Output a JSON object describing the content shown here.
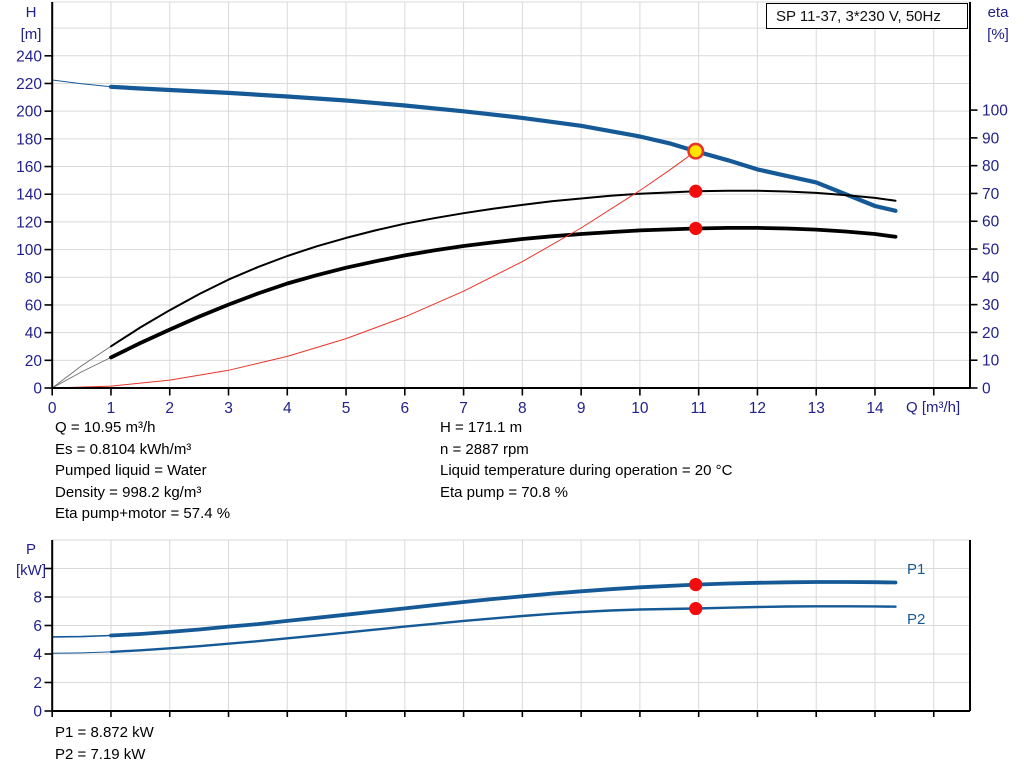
{
  "title_box": "SP 11-37, 3*230 V, 50Hz",
  "colors": {
    "curve_blue": "#155a96",
    "eta_black": "#000000",
    "thin_gray": "#6e6e6e",
    "system_red": "#e8352b",
    "marker_red": "#f20d0d",
    "marker_yellow": "#ffe400",
    "grid": "#d9d9d9",
    "axis": "#000000",
    "tick_text": "#21218c"
  },
  "main_chart": {
    "y_left_title": [
      "H",
      "[m]"
    ],
    "y_right_title": [
      "eta",
      "[%]"
    ],
    "x_title": "Q [m³/h]"
  },
  "power_chart": {
    "y_title": [
      "P",
      "[kW]"
    ],
    "series_labels": [
      "P1",
      "P2"
    ]
  },
  "info_left": [
    "Q = 10.95 m³/h",
    "Es = 0.8104 kWh/m³",
    "Pumped liquid = Water",
    "Density = 998.2 kg/m³",
    "Eta pump+motor = 57.4 %"
  ],
  "info_right": [
    "H = 171.1 m",
    "n = 2887 rpm",
    "Liquid temperature during operation = 20 °C",
    "Eta pump = 70.8 %"
  ],
  "power_info": [
    "P1 = 8.872 kW",
    "P2 = 7.19 kW"
  ],
  "chart_data": [
    {
      "type": "line",
      "title": "SP 11-37, 3*230 V, 50Hz",
      "xlabel": "Q [m³/h]",
      "x_ticks": [
        0,
        1,
        2,
        3,
        4,
        5,
        6,
        7,
        8,
        9,
        10,
        11,
        12,
        13,
        14
      ],
      "x_grid_max": 15,
      "x_max": 15.6,
      "y_left": {
        "label": "H [m]",
        "ticks": [
          0,
          20,
          40,
          60,
          80,
          100,
          120,
          140,
          160,
          180,
          200,
          220,
          240
        ],
        "grid_max": 260,
        "max": 277
      },
      "y_right": {
        "label": "eta [%]",
        "ticks": [
          0,
          10,
          20,
          30,
          40,
          50,
          60,
          70,
          80,
          90,
          100
        ]
      },
      "series": [
        {
          "name": "pump-head-curve",
          "axis": "left",
          "color": "#155a96",
          "width": 4.2,
          "thin_below": 1,
          "thin_width": 1,
          "thin_color": "#155a96",
          "points": [
            [
              0,
              222.5
            ],
            [
              0.5,
              219.8
            ],
            [
              1,
              217.6
            ],
            [
              1.5,
              216.4
            ],
            [
              2,
              215.3
            ],
            [
              3,
              213.2
            ],
            [
              4,
              210.6
            ],
            [
              5,
              207.7
            ],
            [
              6,
              204.1
            ],
            [
              7,
              199.9
            ],
            [
              8,
              195.1
            ],
            [
              9,
              189.4
            ],
            [
              10,
              181.7
            ],
            [
              10.5,
              176.8
            ],
            [
              10.95,
              171.1
            ],
            [
              11.5,
              164.5
            ],
            [
              12,
              157.9
            ],
            [
              12.5,
              153.2
            ],
            [
              13,
              148.5
            ],
            [
              13.5,
              140
            ],
            [
              14,
              131.5
            ],
            [
              14.35,
              128
            ]
          ]
        },
        {
          "name": "eta-pump-curve",
          "axis": "right",
          "color": "#000000",
          "width": 2,
          "thin_below": 1,
          "thin_width": 0.9,
          "thin_color": "#6e6e6e",
          "points": [
            [
              0,
              0
            ],
            [
              0.5,
              8
            ],
            [
              1,
              15
            ],
            [
              1.5,
              21.8
            ],
            [
              2,
              28
            ],
            [
              2.5,
              33.8
            ],
            [
              3,
              39
            ],
            [
              3.5,
              43.5
            ],
            [
              4,
              47.5
            ],
            [
              4.5,
              51
            ],
            [
              5,
              54
            ],
            [
              5.5,
              56.7
            ],
            [
              6,
              59.1
            ],
            [
              6.5,
              61.1
            ],
            [
              7,
              62.9
            ],
            [
              7.5,
              64.5
            ],
            [
              8,
              65.9
            ],
            [
              8.5,
              67.2
            ],
            [
              9,
              68.2
            ],
            [
              9.5,
              69.2
            ],
            [
              10,
              69.9
            ],
            [
              10.95,
              70.8
            ],
            [
              11.5,
              71
            ],
            [
              12,
              71
            ],
            [
              12.5,
              70.7
            ],
            [
              13,
              70.2
            ],
            [
              13.5,
              69.4
            ],
            [
              14,
              68.4
            ],
            [
              14.35,
              67.4
            ]
          ]
        },
        {
          "name": "eta-pump-motor-curve",
          "axis": "right",
          "color": "#000000",
          "width": 3.8,
          "thin_below": 1,
          "thin_width": 0.9,
          "thin_color": "#6e6e6e",
          "points": [
            [
              0,
              0
            ],
            [
              0.5,
              5.8
            ],
            [
              1,
              11
            ],
            [
              1.5,
              16.2
            ],
            [
              2,
              21
            ],
            [
              2.5,
              25.7
            ],
            [
              3,
              30
            ],
            [
              3.5,
              34
            ],
            [
              4,
              37.6
            ],
            [
              4.5,
              40.6
            ],
            [
              5,
              43.3
            ],
            [
              5.5,
              45.6
            ],
            [
              6,
              47.7
            ],
            [
              6.5,
              49.5
            ],
            [
              7,
              51.1
            ],
            [
              7.5,
              52.4
            ],
            [
              8,
              53.6
            ],
            [
              8.5,
              54.6
            ],
            [
              9,
              55.4
            ],
            [
              9.5,
              56.1
            ],
            [
              10,
              56.7
            ],
            [
              10.95,
              57.4
            ],
            [
              11.5,
              57.6
            ],
            [
              12,
              57.6
            ],
            [
              12.5,
              57.4
            ],
            [
              13,
              57
            ],
            [
              13.5,
              56.3
            ],
            [
              14,
              55.4
            ],
            [
              14.35,
              54.4
            ]
          ]
        },
        {
          "name": "system-curve",
          "axis": "left",
          "color": "#e8352b",
          "width": 1,
          "points": [
            [
              0,
              0
            ],
            [
              1,
              1.4
            ],
            [
              2,
              5.7
            ],
            [
              3,
              12.8
            ],
            [
              4,
              22.8
            ],
            [
              5,
              35.7
            ],
            [
              6,
              51.4
            ],
            [
              7,
              69.9
            ],
            [
              8,
              91.3
            ],
            [
              9,
              115.6
            ],
            [
              10,
              142.7
            ],
            [
              10.5,
              157.3
            ],
            [
              10.95,
              171.1
            ]
          ]
        }
      ],
      "markers": [
        {
          "x": 10.95,
          "y": 171.1,
          "axis": "left",
          "style": "duty",
          "name": "duty-point-marker"
        },
        {
          "x": 10.95,
          "y": 70.8,
          "axis": "right",
          "style": "red",
          "name": "eta-pump-marker"
        },
        {
          "x": 10.95,
          "y": 57.4,
          "axis": "right",
          "style": "red",
          "name": "eta-pump-motor-marker"
        }
      ]
    },
    {
      "type": "line",
      "ylabel": "P [kW]",
      "y_ticks_labeled": [
        0,
        2,
        4,
        6,
        8
      ],
      "y_tick_max": 10,
      "y_grid_max": 12,
      "series": [
        {
          "name": "P1-curve",
          "color": "#155a96",
          "width": 3.8,
          "thin_below": 1,
          "thin_width": 1.6,
          "thin_color": "#155a96",
          "points": [
            [
              0,
              5.2
            ],
            [
              0.5,
              5.22
            ],
            [
              1,
              5.3
            ],
            [
              1.5,
              5.4
            ],
            [
              2,
              5.55
            ],
            [
              2.5,
              5.72
            ],
            [
              3,
              5.92
            ],
            [
              3.5,
              6.1
            ],
            [
              4,
              6.32
            ],
            [
              4.5,
              6.54
            ],
            [
              5,
              6.76
            ],
            [
              5.5,
              6.98
            ],
            [
              6,
              7.2
            ],
            [
              6.5,
              7.43
            ],
            [
              7,
              7.65
            ],
            [
              7.5,
              7.86
            ],
            [
              8,
              8.05
            ],
            [
              8.5,
              8.24
            ],
            [
              9,
              8.4
            ],
            [
              9.5,
              8.55
            ],
            [
              10,
              8.68
            ],
            [
              10.95,
              8.872
            ],
            [
              11.5,
              8.95
            ],
            [
              12,
              9.0
            ],
            [
              12.5,
              9.03
            ],
            [
              13,
              9.05
            ],
            [
              13.5,
              9.05
            ],
            [
              14,
              9.04
            ],
            [
              14.35,
              9.02
            ]
          ]
        },
        {
          "name": "P2-curve",
          "color": "#155a96",
          "width": 2.4,
          "thin_below": 1,
          "thin_width": 1,
          "thin_color": "#155a96",
          "points": [
            [
              0,
              4.05
            ],
            [
              0.5,
              4.08
            ],
            [
              1,
              4.15
            ],
            [
              1.5,
              4.26
            ],
            [
              2,
              4.4
            ],
            [
              2.5,
              4.55
            ],
            [
              3,
              4.72
            ],
            [
              3.5,
              4.9
            ],
            [
              4,
              5.1
            ],
            [
              4.5,
              5.3
            ],
            [
              5,
              5.5
            ],
            [
              5.5,
              5.71
            ],
            [
              6,
              5.92
            ],
            [
              6.5,
              6.12
            ],
            [
              7,
              6.32
            ],
            [
              7.5,
              6.5
            ],
            [
              8,
              6.67
            ],
            [
              8.5,
              6.82
            ],
            [
              9,
              6.95
            ],
            [
              9.5,
              7.05
            ],
            [
              10,
              7.12
            ],
            [
              10.95,
              7.19
            ],
            [
              11.5,
              7.25
            ],
            [
              12,
              7.3
            ],
            [
              12.5,
              7.33
            ],
            [
              13,
              7.35
            ],
            [
              13.5,
              7.35
            ],
            [
              14,
              7.34
            ],
            [
              14.35,
              7.32
            ]
          ]
        }
      ],
      "markers": [
        {
          "x": 10.95,
          "y": 8.872,
          "style": "red",
          "name": "p1-marker"
        },
        {
          "x": 10.95,
          "y": 7.19,
          "style": "red",
          "name": "p2-marker"
        }
      ]
    }
  ]
}
